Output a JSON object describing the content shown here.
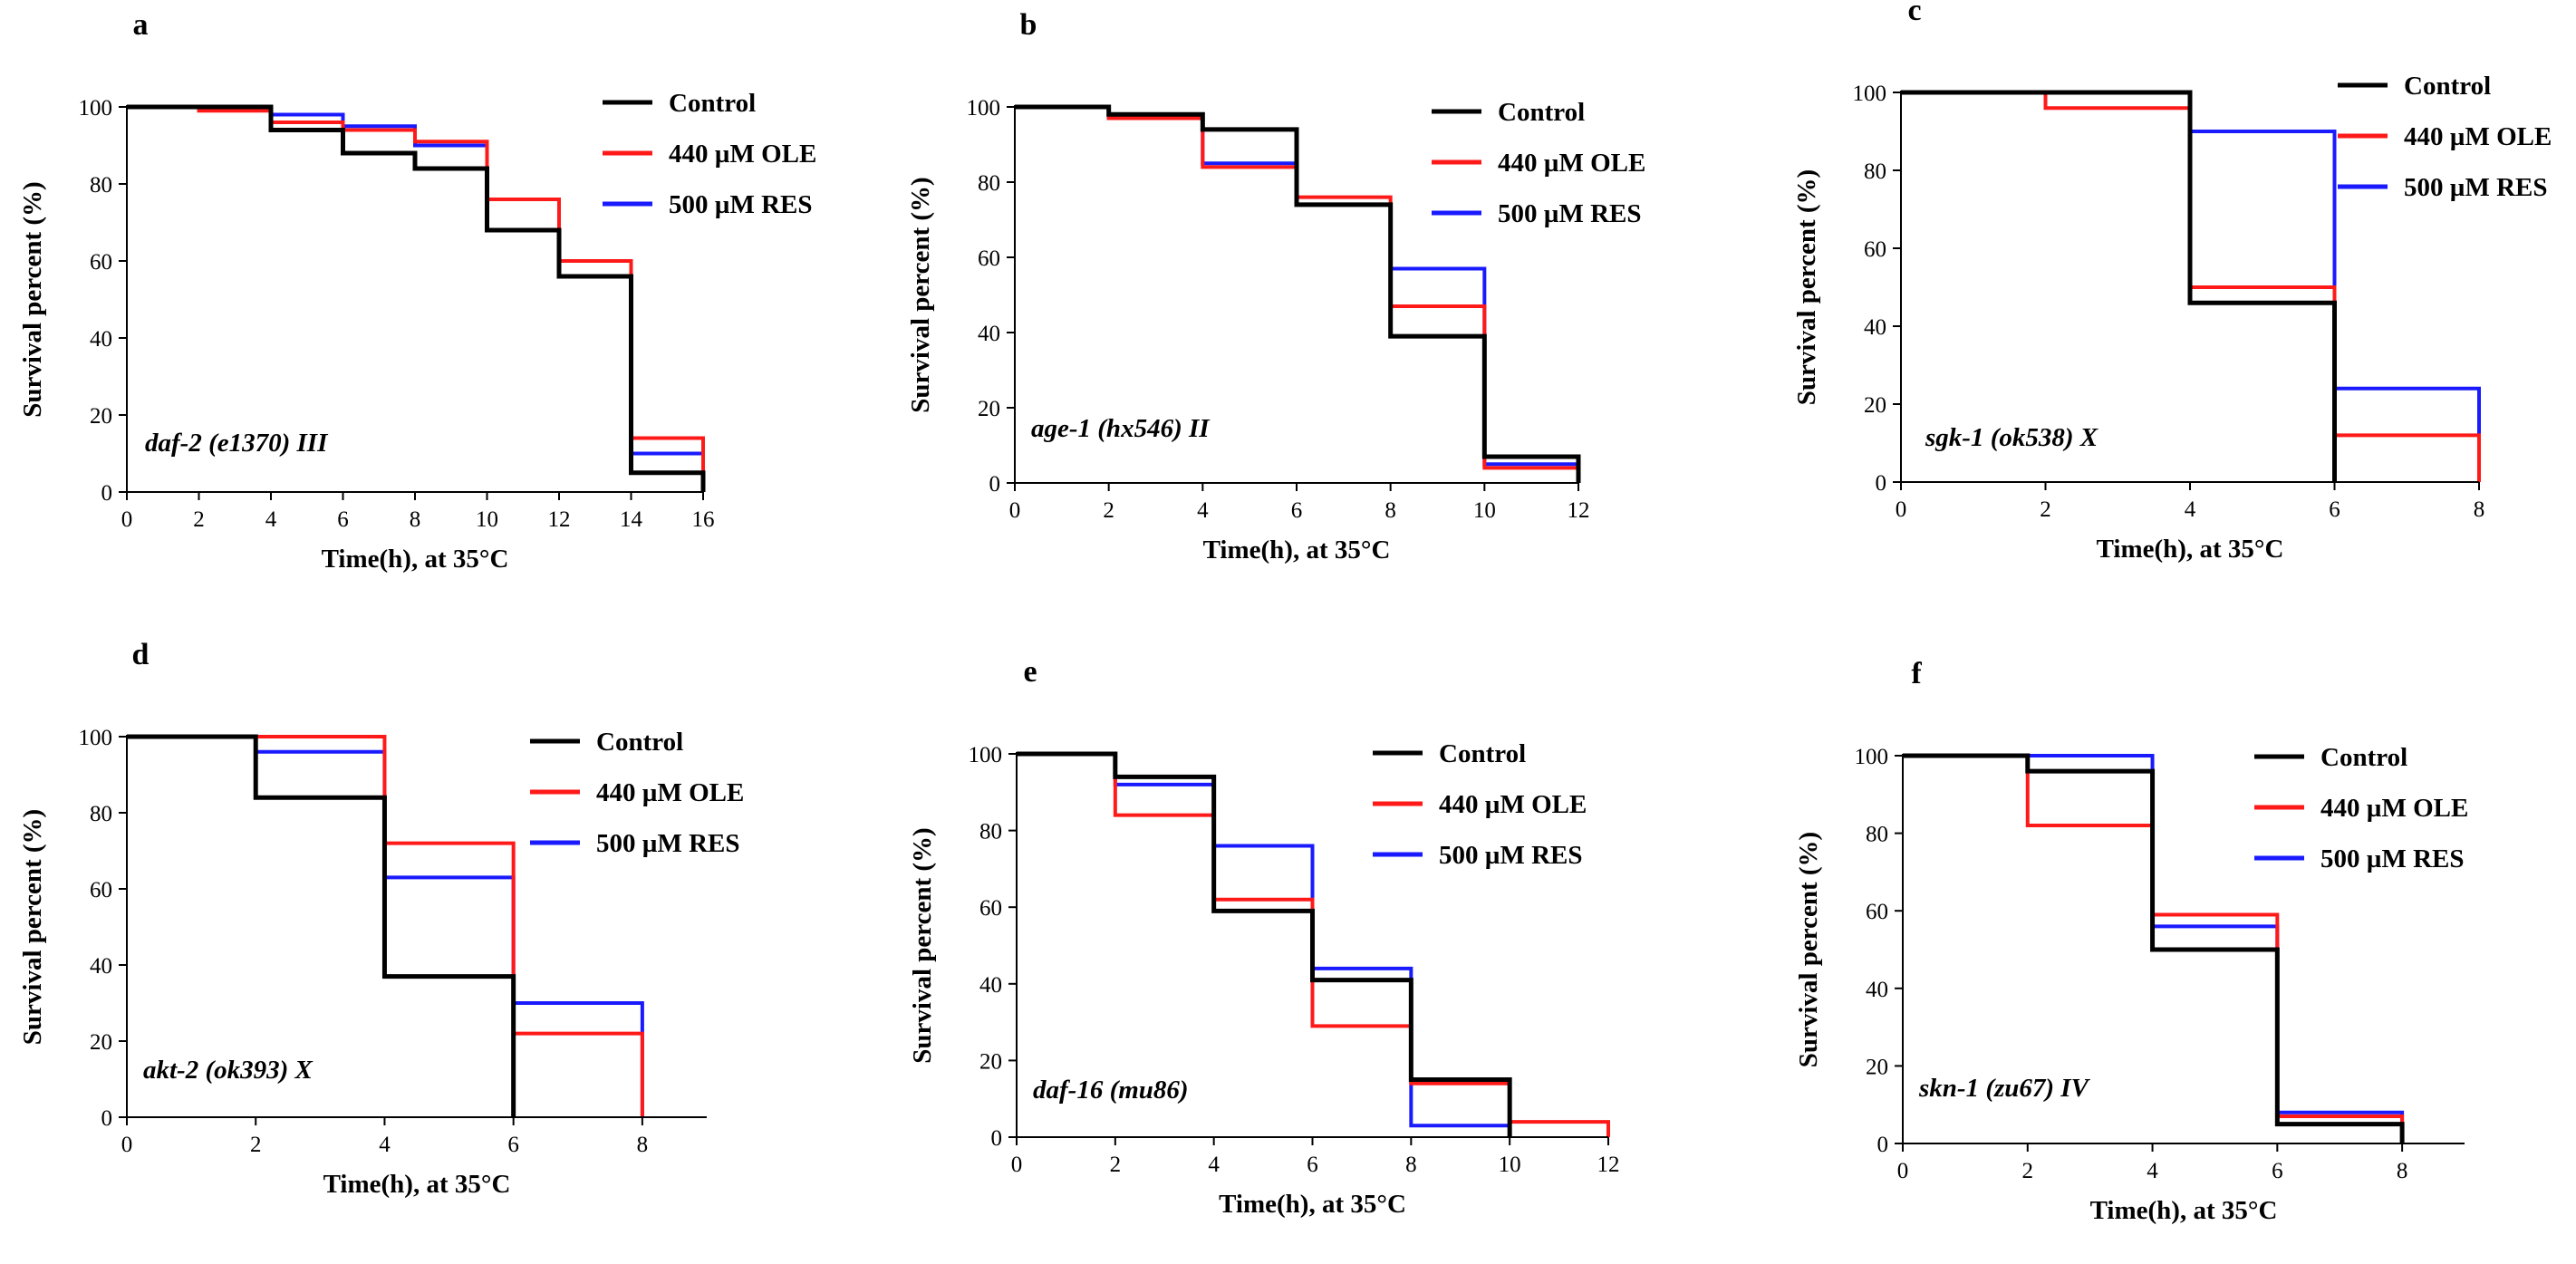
{
  "figure": {
    "legend": [
      "Control",
      "440 µM OLE",
      "500 µM RES"
    ],
    "colors": {
      "Control": "#000000",
      "440 µM OLE": "#ff1a1a",
      "500 µM RES": "#1a1aff",
      "axis": "#000000"
    }
  },
  "chart_data": [
    {
      "type": "line",
      "step": true,
      "panel": "a",
      "strain": "daf-2 (e1370) III",
      "xlabel": "Time(h), at 35°C",
      "ylabel": "Survival percent (%)",
      "xlim": [
        0,
        16
      ],
      "ylim": [
        0,
        100
      ],
      "xticks": [
        "0",
        "2",
        "4",
        "6",
        "8",
        "10",
        "12",
        "14",
        "16"
      ],
      "yticks": [
        "0",
        "20",
        "40",
        "60",
        "80",
        "100"
      ],
      "series": [
        {
          "name": "Control",
          "x": [
            0,
            2,
            4,
            6,
            8,
            10,
            12,
            14,
            16
          ],
          "y": [
            100,
            100,
            94,
            88,
            84,
            68,
            56,
            5,
            0
          ]
        },
        {
          "name": "440 µM OLE",
          "x": [
            0,
            2,
            4,
            6,
            8,
            10,
            12,
            14,
            16
          ],
          "y": [
            100,
            99,
            96,
            94,
            91,
            76,
            60,
            14,
            0
          ]
        },
        {
          "name": "500 µM RES",
          "x": [
            0,
            2,
            4,
            6,
            8,
            10,
            12,
            14,
            16
          ],
          "y": [
            100,
            100,
            98,
            95,
            90,
            68,
            56,
            10,
            0
          ]
        }
      ]
    },
    {
      "type": "line",
      "step": true,
      "panel": "b",
      "strain": "age-1 (hx546) II",
      "xlabel": "Time(h), at 35°C",
      "ylabel": "Survival percent (%)",
      "xlim": [
        0,
        12
      ],
      "ylim": [
        0,
        100
      ],
      "xticks": [
        "0",
        "2",
        "4",
        "6",
        "8",
        "10",
        "12"
      ],
      "yticks": [
        "0",
        "20",
        "40",
        "60",
        "80",
        "100"
      ],
      "series": [
        {
          "name": "Control",
          "x": [
            0,
            2,
            4,
            6,
            8,
            10,
            12
          ],
          "y": [
            100,
            98,
            94,
            74,
            39,
            7,
            0
          ]
        },
        {
          "name": "440 µM OLE",
          "x": [
            0,
            2,
            4,
            6,
            8,
            10,
            12
          ],
          "y": [
            100,
            97,
            84,
            76,
            47,
            4,
            0
          ]
        },
        {
          "name": "500 µM RES",
          "x": [
            0,
            2,
            4,
            6,
            8,
            10,
            12
          ],
          "y": [
            100,
            97,
            85,
            74,
            57,
            5,
            0
          ]
        }
      ]
    },
    {
      "type": "line",
      "step": true,
      "panel": "c",
      "strain": "sgk-1 (ok538) X",
      "xlabel": "Time(h), at 35°C",
      "ylabel": "Survival percent (%)",
      "xlim": [
        0,
        8
      ],
      "ylim": [
        0,
        100
      ],
      "xticks": [
        "0",
        "2",
        "4",
        "6",
        "8"
      ],
      "yticks": [
        "0",
        "20",
        "40",
        "60",
        "80",
        "100"
      ],
      "series": [
        {
          "name": "Control",
          "x": [
            0,
            4,
            6
          ],
          "y": [
            100,
            46,
            0
          ]
        },
        {
          "name": "440 µM OLE",
          "x": [
            0,
            2,
            4,
            6,
            8
          ],
          "y": [
            100,
            96,
            50,
            12,
            0
          ]
        },
        {
          "name": "500 µM RES",
          "x": [
            0,
            4,
            6,
            8
          ],
          "y": [
            100,
            90,
            24,
            0
          ]
        }
      ]
    },
    {
      "type": "line",
      "step": true,
      "panel": "d",
      "strain": "akt-2 (ok393) X",
      "xlabel": "Time(h), at 35°C",
      "ylabel": "Survival percent (%)",
      "xlim": [
        0,
        9
      ],
      "ylim": [
        0,
        100
      ],
      "xticks": [
        "0",
        "2",
        "4",
        "6",
        "8"
      ],
      "yticks": [
        "0",
        "20",
        "40",
        "60",
        "80",
        "100"
      ],
      "series": [
        {
          "name": "Control",
          "x": [
            0,
            2,
            4,
            6
          ],
          "y": [
            100,
            84,
            37,
            0
          ]
        },
        {
          "name": "440 µM OLE",
          "x": [
            0,
            4,
            6,
            8
          ],
          "y": [
            100,
            72,
            22,
            0
          ]
        },
        {
          "name": "500 µM RES",
          "x": [
            0,
            2,
            4,
            6,
            8
          ],
          "y": [
            100,
            96,
            63,
            30,
            0
          ]
        }
      ]
    },
    {
      "type": "line",
      "step": true,
      "panel": "e",
      "strain": "daf-16 (mu86)",
      "xlabel": "Time(h), at 35°C",
      "ylabel": "Survival percent (%)",
      "xlim": [
        0,
        12
      ],
      "ylim": [
        0,
        100
      ],
      "xticks": [
        "0",
        "2",
        "4",
        "6",
        "8",
        "10",
        "12"
      ],
      "yticks": [
        "0",
        "20",
        "40",
        "60",
        "80",
        "100"
      ],
      "series": [
        {
          "name": "Control",
          "x": [
            0,
            2,
            4,
            6,
            8,
            10
          ],
          "y": [
            100,
            94,
            59,
            41,
            15,
            0
          ]
        },
        {
          "name": "440 µM OLE",
          "x": [
            0,
            2,
            4,
            6,
            8,
            10,
            12
          ],
          "y": [
            100,
            84,
            62,
            29,
            14,
            4,
            0
          ]
        },
        {
          "name": "500 µM RES",
          "x": [
            0,
            2,
            4,
            6,
            8,
            10
          ],
          "y": [
            100,
            92,
            76,
            44,
            3,
            0
          ]
        }
      ]
    },
    {
      "type": "line",
      "step": true,
      "panel": "f",
      "strain": "skn-1 (zu67) IV",
      "xlabel": "Time(h), at 35°C",
      "ylabel": "Survival percent (%)",
      "xlim": [
        0,
        9
      ],
      "ylim": [
        0,
        100
      ],
      "xticks": [
        "0",
        "2",
        "4",
        "6",
        "8"
      ],
      "yticks": [
        "0",
        "20",
        "40",
        "60",
        "80",
        "100"
      ],
      "series": [
        {
          "name": "Control",
          "x": [
            0,
            2,
            4,
            6,
            8
          ],
          "y": [
            100,
            96,
            50,
            5,
            0
          ]
        },
        {
          "name": "440 µM OLE",
          "x": [
            0,
            2,
            4,
            6,
            8
          ],
          "y": [
            100,
            82,
            59,
            7,
            0
          ]
        },
        {
          "name": "500 µM RES",
          "x": [
            0,
            4,
            6,
            8
          ],
          "y": [
            100,
            56,
            8,
            0
          ]
        }
      ]
    }
  ]
}
